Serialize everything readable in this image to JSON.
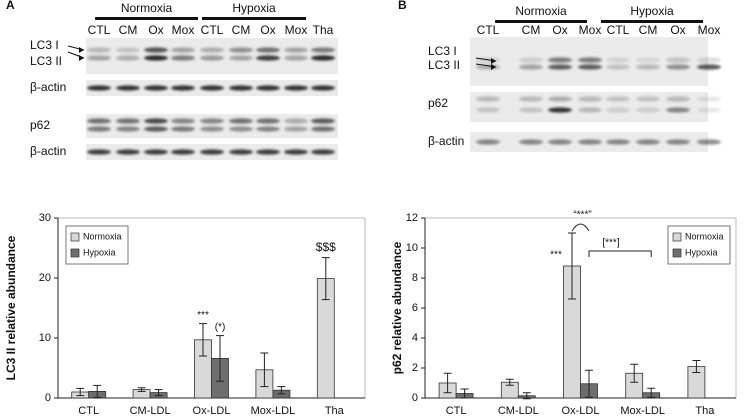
{
  "figure": {
    "panels": [
      {
        "letter": "A",
        "groups": [
          "Normoxia",
          "Hypoxia"
        ],
        "lanes": [
          "CTL",
          "CM",
          "Ox",
          "Mox",
          "CTL",
          "CM",
          "Ox",
          "Mox",
          "Tha"
        ],
        "rows": [
          "LC3 I",
          "LC3 II",
          "β-actin",
          "p62",
          "β-actin"
        ]
      },
      {
        "letter": "B",
        "groups": [
          "Normoxia",
          "Hypoxia"
        ],
        "lanes": [
          "CTL",
          "CM",
          "Ox",
          "Mox",
          "CTL",
          "CM",
          "Ox",
          "Mox"
        ],
        "rows": [
          "LC3 I",
          "LC3 II",
          "p62",
          "β-actin"
        ]
      }
    ]
  },
  "chart_data": [
    {
      "type": "bar",
      "y_label": "LC3 II relative abundance",
      "categories": [
        "CTL",
        "CM-LDL",
        "Ox-LDL",
        "Mox-LDL",
        "Tha"
      ],
      "series": [
        {
          "name": "Normoxia",
          "color": "#d9d9d9",
          "values": [
            1.0,
            1.4,
            9.7,
            4.7,
            19.9
          ],
          "errors": [
            0.6,
            0.3,
            2.7,
            2.8,
            3.5
          ]
        },
        {
          "name": "Hypoxia",
          "color": "#6e6e6e",
          "values": [
            1.1,
            0.9,
            6.6,
            1.3,
            null
          ],
          "errors": [
            1.0,
            0.5,
            3.8,
            0.6,
            null
          ]
        }
      ],
      "ylim": [
        0,
        30
      ],
      "yticks": [
        0,
        10,
        20,
        30
      ],
      "legend": "upper left",
      "annotations": [
        "***",
        "(*)",
        "$$$"
      ]
    },
    {
      "type": "bar",
      "y_label": "p62 relative abundance",
      "categories": [
        "CTL",
        "CM-LDL",
        "Ox-LDL",
        "Mox-LDL",
        "Tha"
      ],
      "series": [
        {
          "name": "Normoxia",
          "color": "#d9d9d9",
          "values": [
            1.0,
            1.05,
            8.8,
            1.65,
            2.1
          ],
          "errors": [
            0.65,
            0.2,
            2.2,
            0.6,
            0.4
          ]
        },
        {
          "name": "Hypoxia",
          "color": "#6e6e6e",
          "values": [
            0.3,
            0.15,
            0.95,
            0.35,
            null
          ],
          "errors": [
            0.3,
            0.2,
            0.9,
            0.3,
            null
          ]
        }
      ],
      "ylim": [
        0,
        12
      ],
      "yticks": [
        0,
        2,
        4,
        6,
        8,
        10,
        12
      ],
      "legend": "upper right",
      "annotations": [
        "***",
        "“***”",
        "[***]"
      ]
    }
  ]
}
